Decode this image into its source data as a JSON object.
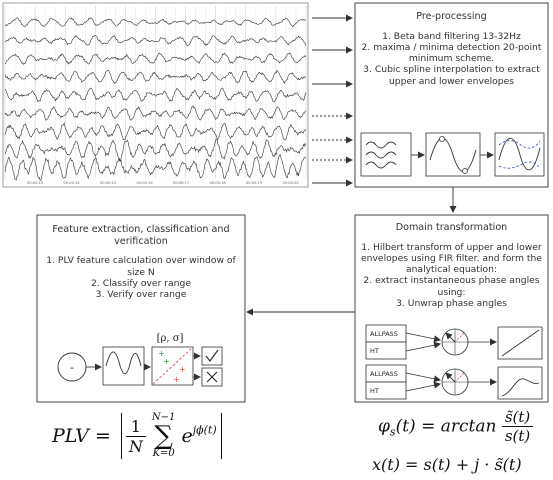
{
  "eeg": {
    "channel_count": 9,
    "time_labels": [
      "00:00:13",
      "00:00:14",
      "00:00:15",
      "00:00:16",
      "00:00:17",
      "00:00:18",
      "00:00:19",
      "00:00:20"
    ]
  },
  "preprocessing": {
    "title": "Pre-processing",
    "steps": [
      "1. Beta band filtering 13-32Hz",
      "2. maxima / minima detection 20-point minimum scheme.",
      "3. Cubic spline interpolation to extract upper and lower envelopes"
    ]
  },
  "domain": {
    "title": "Domain transformation",
    "steps": [
      "1. Hilbert transform of upper and lower envelopes using FIR filter. and form the analytical equation:",
      "2. extract instantaneous phase angles using:",
      "3. Unwrap phase angles"
    ],
    "blocks": [
      {
        "allpass": "ALLPASS",
        "ht": "HT"
      },
      {
        "allpass": "ALLPASS",
        "ht": "HT"
      }
    ]
  },
  "feature": {
    "title": "Feature extraction, classification and verification",
    "steps": [
      "1. PLV feature calculation over window of size  N",
      "2. Classify over range",
      "3. Verify over range"
    ],
    "start_symbol": "-",
    "param_label": "[ρ, σ]"
  },
  "formulas": {
    "plv_lhs": "PLV =",
    "plv_num": "1",
    "plv_den": "N",
    "plv_sum_top": "N−1",
    "plv_sum_bottom": "K=0",
    "plv_exp_base": "e",
    "plv_exp": "jϕ(t)",
    "phase_lhs": "φ",
    "phase_sub": "s",
    "phase_arg": "(t) = arctan",
    "phase_num": "s̃(t)",
    "phase_den": "s(t)",
    "analytic": "x(t) = s(t) + j · s̃(t)"
  }
}
